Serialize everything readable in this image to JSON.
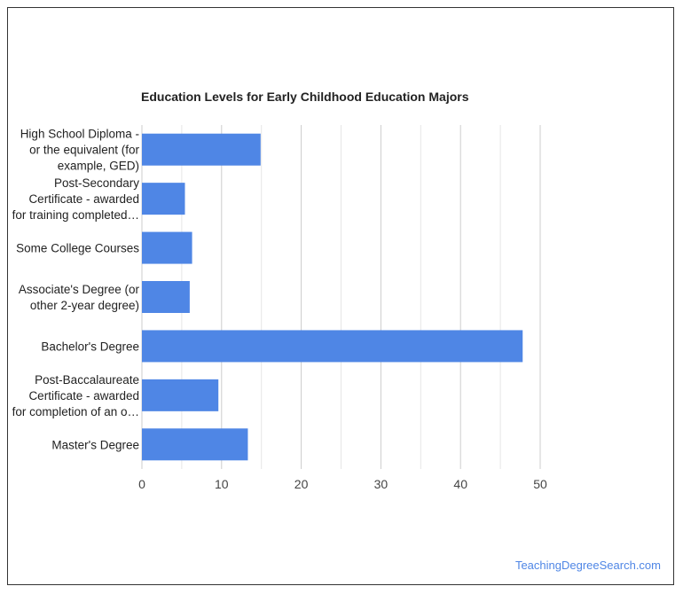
{
  "chart_data": {
    "type": "bar",
    "orientation": "horizontal",
    "title": "Education Levels for Early Childhood Education Majors",
    "categories": [
      [
        "High School Diploma -",
        "or the equivalent (for",
        "example, GED)"
      ],
      [
        "Post-Secondary",
        "Certificate - awarded",
        "for training completed…"
      ],
      [
        "Some College Courses"
      ],
      [
        "Associate's Degree (or",
        "other 2-year degree)"
      ],
      [
        "Bachelor's Degree"
      ],
      [
        "Post-Baccalaureate",
        "Certificate - awarded",
        "for completion of an o…"
      ],
      [
        "Master's Degree"
      ]
    ],
    "values": [
      14.9,
      5.4,
      6.3,
      6.0,
      47.8,
      9.6,
      13.3
    ],
    "xlim": [
      0,
      50
    ],
    "xticks": [
      0,
      10,
      20,
      30,
      40,
      50
    ],
    "grid": true,
    "bar_color": "#4f86e5"
  },
  "footer": {
    "source": "TeachingDegreeSearch.com"
  }
}
